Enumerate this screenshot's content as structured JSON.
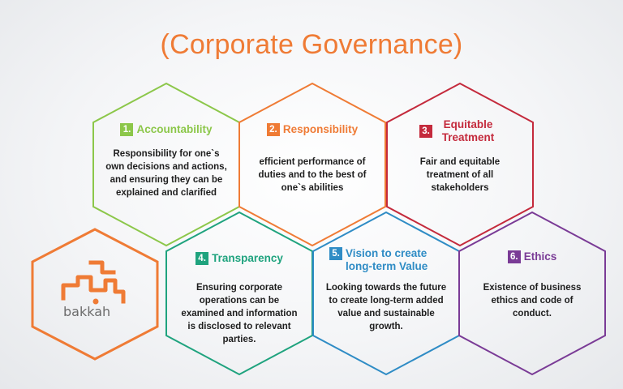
{
  "title": "(Corporate Governance)",
  "colors": {
    "title": "#ef7b35",
    "accountability": "#8cc74a",
    "responsibility": "#ef7b35",
    "equitable": "#c42a3c",
    "transparency": "#1fa37e",
    "vision": "#2f8cc5",
    "ethics": "#7a3b96",
    "logo": "#ef7b35"
  },
  "cells": [
    {
      "num": "1.",
      "heading": "Accountability",
      "desc": "Responsibility for one`s own decisions and actions, and ensuring they can be explained and clarified"
    },
    {
      "num": "2.",
      "heading": "Responsibility",
      "desc": "efficient performance of duties and to the best of one`s abilities"
    },
    {
      "num": "3.",
      "heading": "Equitable Treatment",
      "desc": "Fair and equitable treatment of all stakeholders"
    },
    {
      "num": "4.",
      "heading": "Transparency",
      "desc": "Ensuring corporate operations can be examined and information is disclosed to relevant parties."
    },
    {
      "num": "5.",
      "heading": "Vision to create long-term Value",
      "desc": "Looking towards the future to create long-term added value and sustainable growth."
    },
    {
      "num": "6.",
      "heading": "Ethics",
      "desc": "Existence of business ethics and code of conduct."
    }
  ],
  "logo": {
    "text": "bakkah",
    "icon": "bakkah-logo-mark"
  }
}
